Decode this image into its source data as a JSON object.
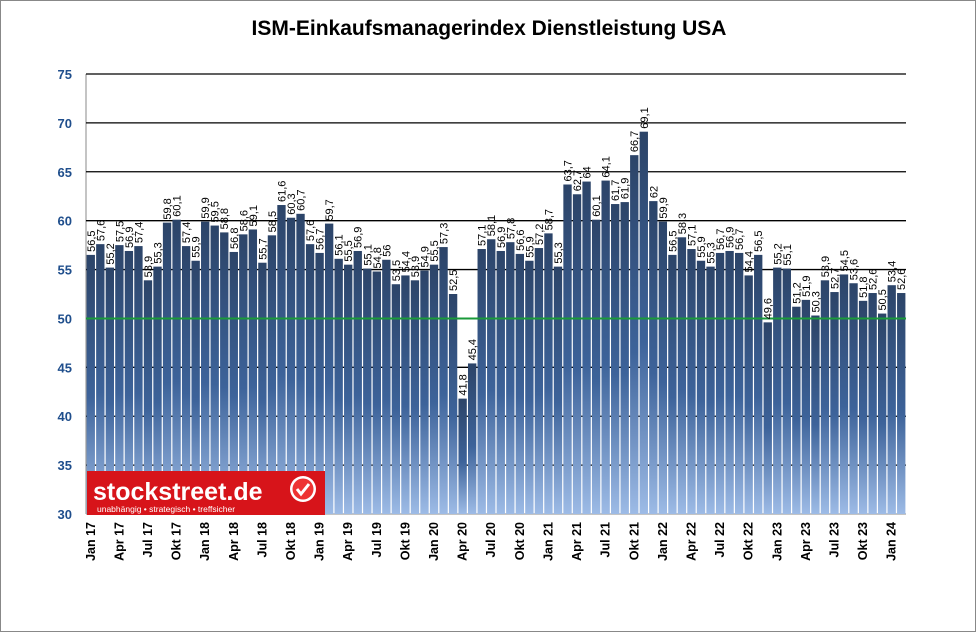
{
  "chart_data": {
    "type": "bar",
    "title": "ISM-Einkaufsmanagerindex Dienstleistung USA",
    "xlabel": "",
    "ylabel": "",
    "ylim": [
      30,
      75
    ],
    "yticks": [
      "30",
      "35",
      "40",
      "45",
      "50",
      "55",
      "60",
      "65",
      "70",
      "75"
    ],
    "reference_line": {
      "value": 50,
      "color": "#1a9a3a"
    },
    "bar_color": "#2d4a72",
    "grid": true,
    "xtick_labels": [
      "Jan 17",
      "Apr 17",
      "Jul 17",
      "Okt 17",
      "Jan 18",
      "Apr 18",
      "Jul 18",
      "Okt 18",
      "Jan 19",
      "Apr 19",
      "Jul 19",
      "Okt 19",
      "Jan 20",
      "Apr 20",
      "Jul 20",
      "Okt 20",
      "Jan 21",
      "Apr 21",
      "Jul 21",
      "Okt 21",
      "Jan 22",
      "Apr 22",
      "Jul 22",
      "Okt 22",
      "Jan 23",
      "Apr 23",
      "Jul 23",
      "Okt 23",
      "Jan 24"
    ],
    "values": [
      56.5,
      57.6,
      55.2,
      57.5,
      56.9,
      57.4,
      53.9,
      55.3,
      59.8,
      60.1,
      57.4,
      55.9,
      59.9,
      59.5,
      58.8,
      56.8,
      58.6,
      59.1,
      55.7,
      58.5,
      61.6,
      60.3,
      60.7,
      57.6,
      56.7,
      59.7,
      56.1,
      55.5,
      56.9,
      55.1,
      54.8,
      56,
      53.5,
      54.4,
      53.9,
      54.9,
      55.5,
      57.3,
      52.5,
      41.8,
      45.4,
      57.1,
      58.1,
      56.9,
      57.8,
      56.6,
      55.9,
      57.2,
      58.7,
      55.3,
      63.7,
      62.7,
      64,
      60.1,
      64.1,
      61.7,
      61.9,
      66.7,
      69.1,
      62,
      59.9,
      56.5,
      58.3,
      57.1,
      55.9,
      55.3,
      56.7,
      56.9,
      56.7,
      54.4,
      56.5,
      49.6,
      55.2,
      55.1,
      51.2,
      51.9,
      50.3,
      53.9,
      52.7,
      54.5,
      53.6,
      51.8,
      52.6,
      50.5,
      53.4,
      52.6
    ]
  },
  "logo": {
    "text": "stockstreet.de",
    "tagline": "unabhängig • strategisch • treffsicher"
  }
}
